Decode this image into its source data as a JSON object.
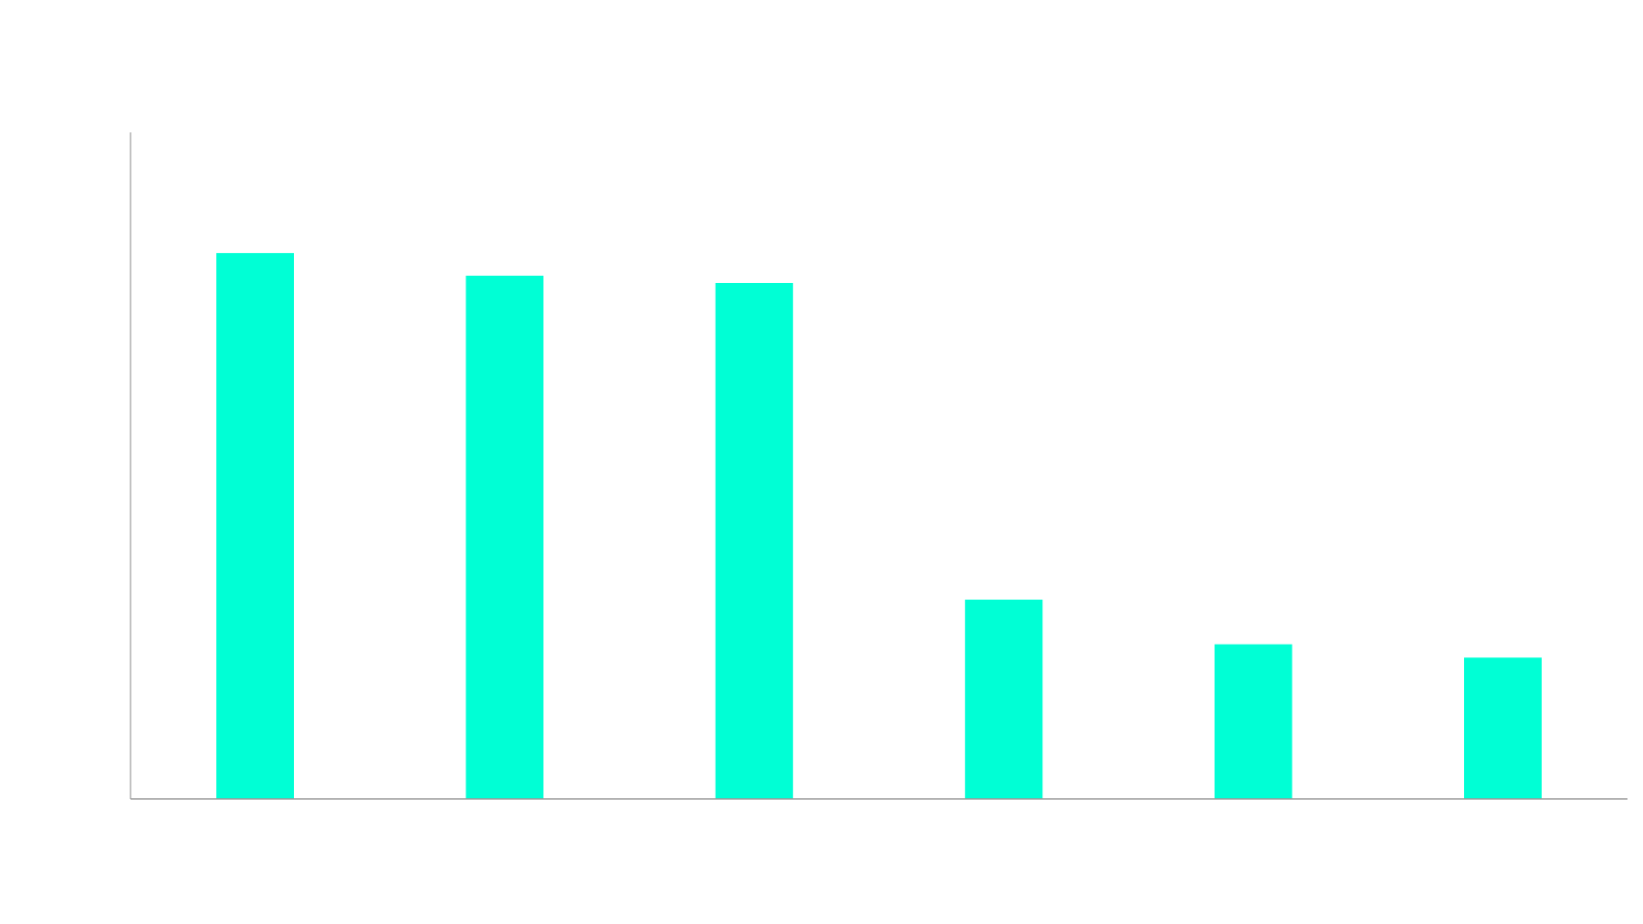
{
  "chart_data": {
    "type": "bar",
    "title": "",
    "xlabel": "",
    "ylabel": "",
    "categories": [
      "",
      "",
      "",
      "",
      "",
      ""
    ],
    "values": [
      81.9,
      78.5,
      77.4,
      29.9,
      23.2,
      21.2
    ],
    "ylim": [
      0,
      100
    ],
    "grid": false,
    "legend": "none",
    "colors": {
      "bar": "#00FFD5",
      "axis": "#999999",
      "background": "#FFFFFF"
    }
  }
}
